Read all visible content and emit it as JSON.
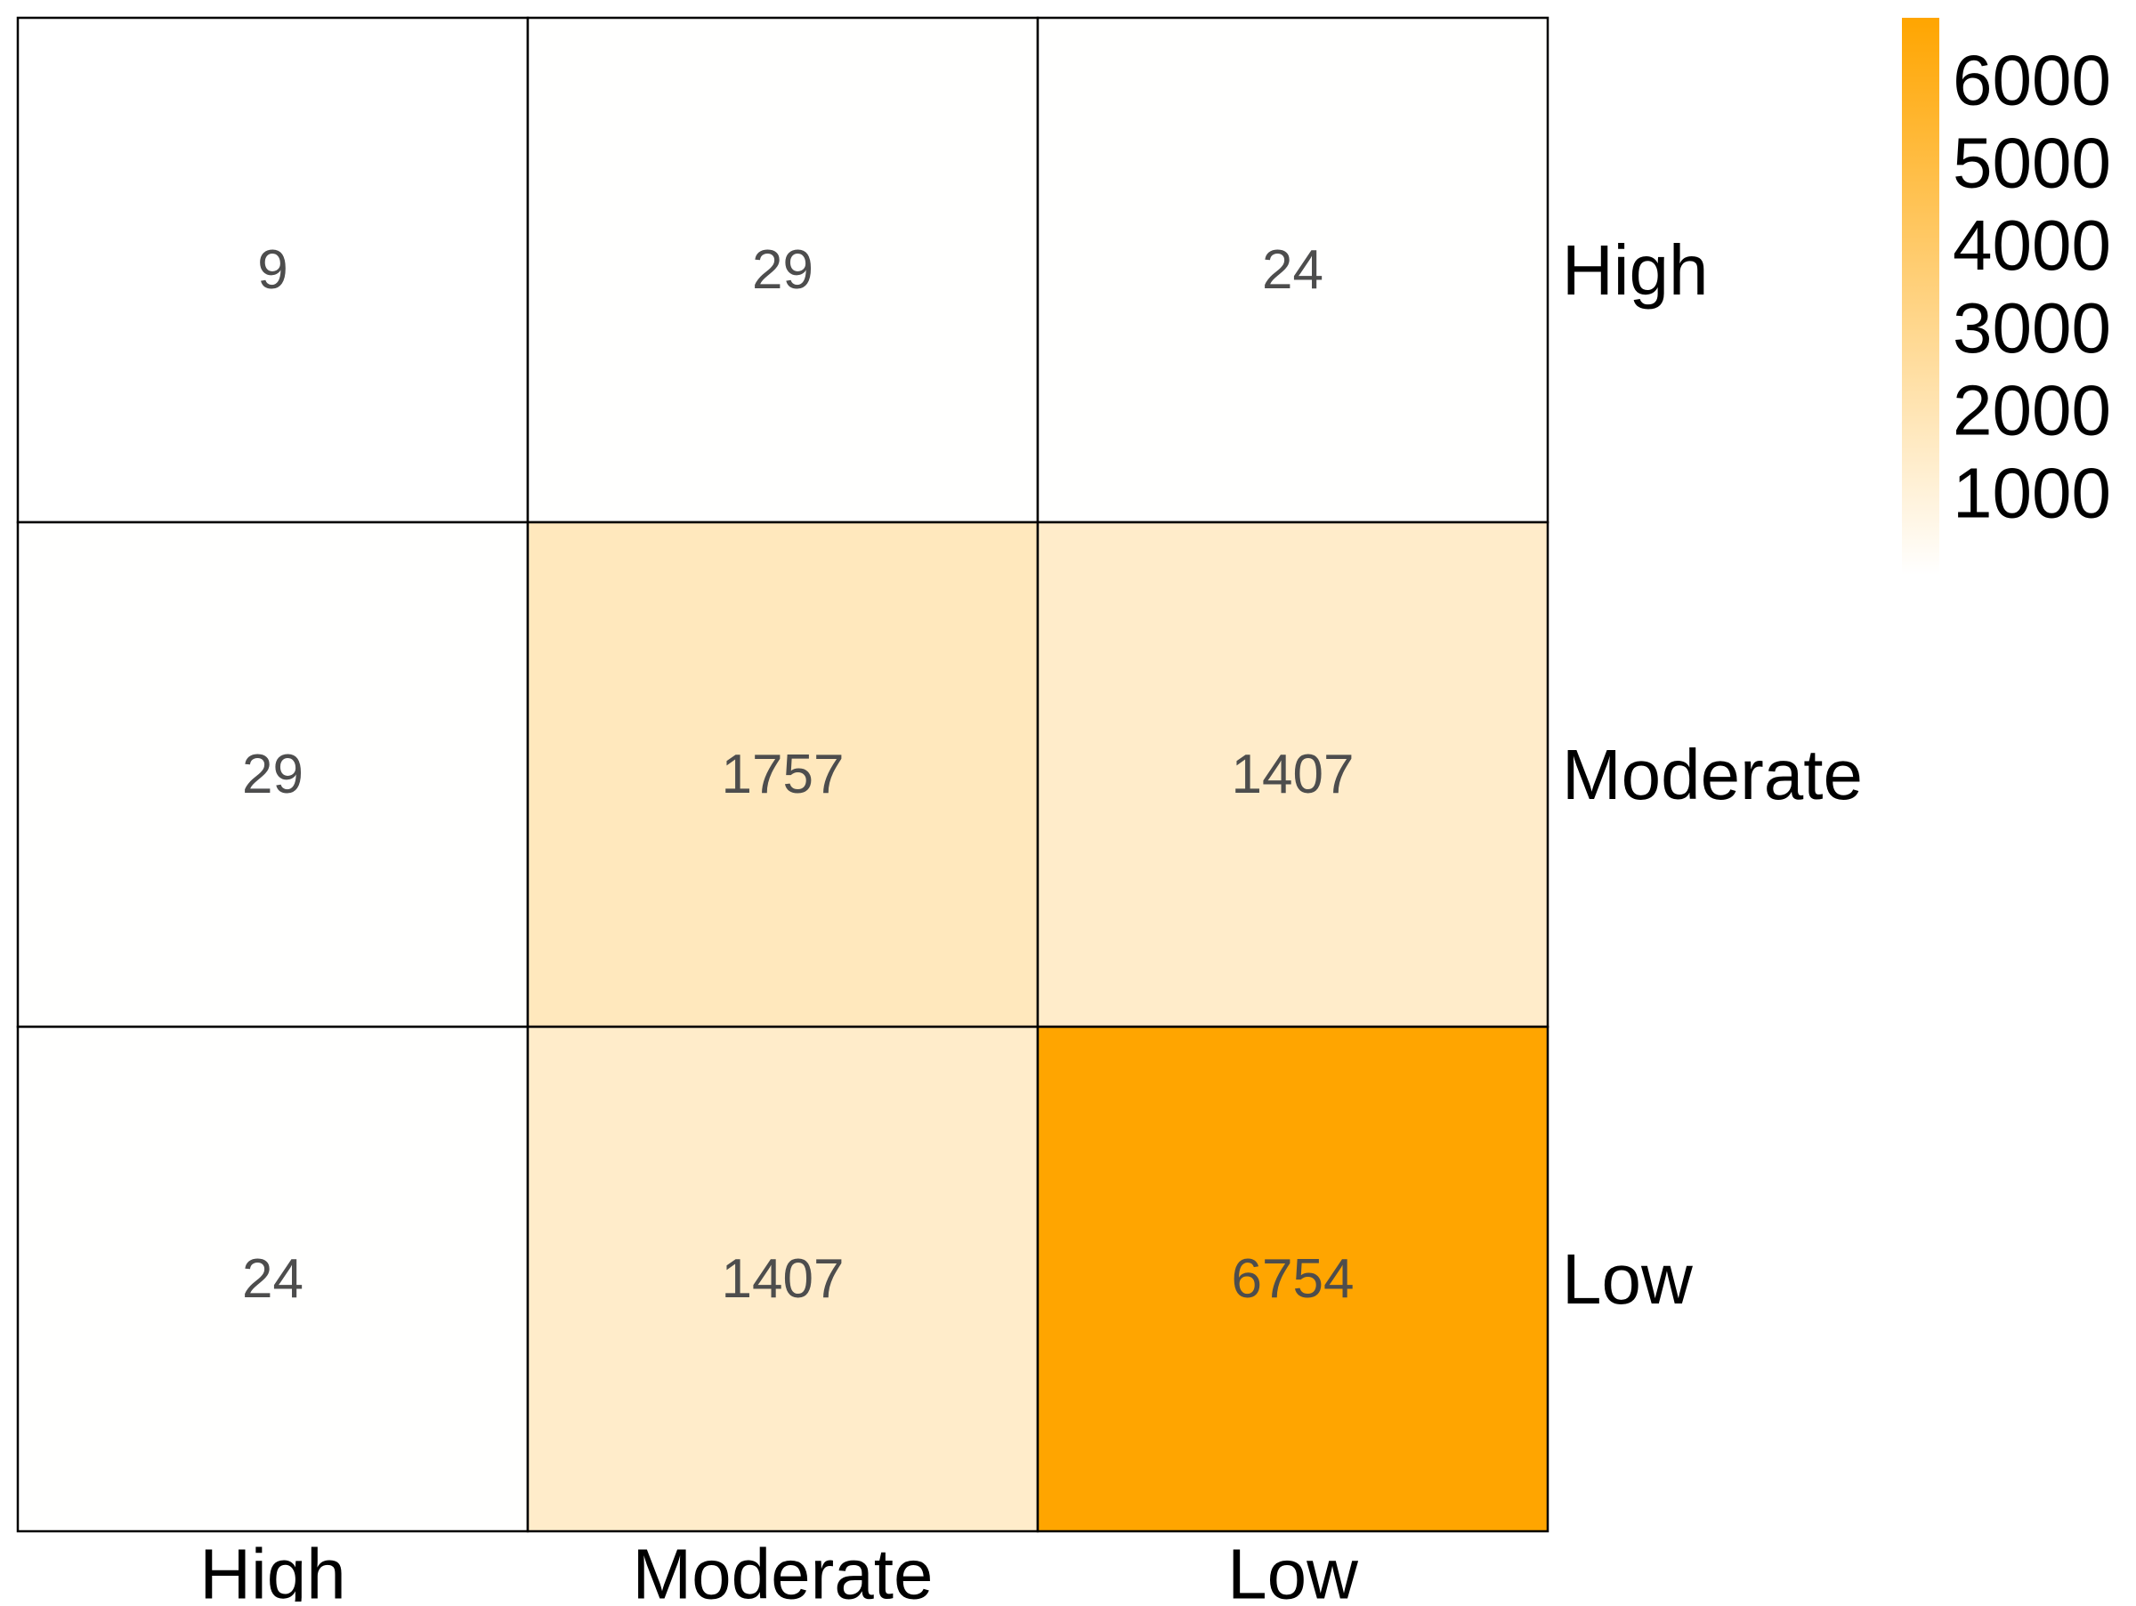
{
  "chart_data": {
    "type": "heatmap",
    "title": "",
    "xlabel": "",
    "ylabel": "",
    "x_categories": [
      "High",
      "Moderate",
      "Low"
    ],
    "y_categories": [
      "High",
      "Moderate",
      "Low"
    ],
    "values": [
      [
        9,
        29,
        24
      ],
      [
        29,
        1757,
        1407
      ],
      [
        24,
        1407,
        6754
      ]
    ],
    "colorbar": {
      "ticks": [
        "1000",
        "2000",
        "3000",
        "4000",
        "5000",
        "6000"
      ],
      "range": [
        9,
        6754
      ],
      "low_color": "#ffffff",
      "high_color": "#ffa500"
    },
    "cell_text_color": "#4d4d4d",
    "grid_line_color": "#000000",
    "legend_position": "top-right"
  }
}
